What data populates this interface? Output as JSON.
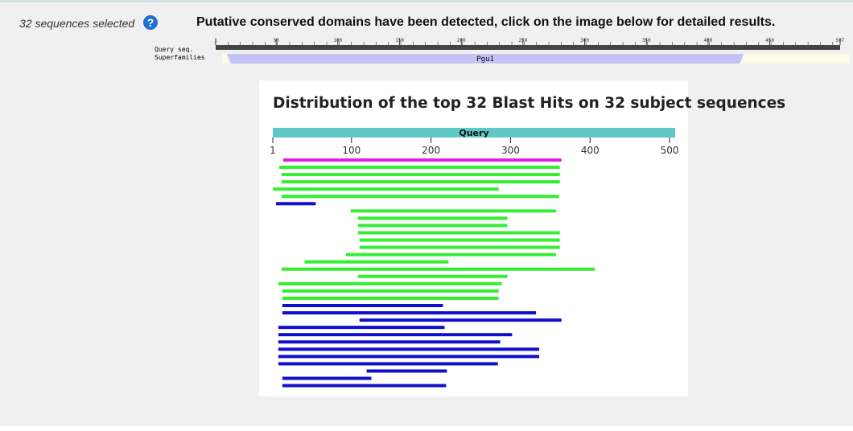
{
  "selection": {
    "count_text": "32 sequences selected"
  },
  "help": {
    "glyph": "?"
  },
  "cdd": {
    "title": "Putative conserved domains have been detected, click on the image below for detailed results.",
    "query_label": "Query seq.",
    "superfamilies_label": "Superfamilies",
    "query_length": 507,
    "scale_ticks": [
      1,
      50,
      100,
      150,
      200,
      250,
      300,
      350,
      400,
      450,
      507
    ],
    "domains": [
      {
        "name": "Pgu1",
        "start": 10,
        "end": 429
      }
    ],
    "colors": {
      "query_bar": "#444444",
      "domain": "#c4c4f4"
    }
  },
  "blast": {
    "title": "Distribution of the top 32 Blast Hits on 32 subject sequences",
    "query_label": "Query",
    "query_color": "#5ec8c4",
    "ticks": [
      1,
      100,
      200,
      300,
      400,
      500
    ],
    "max_length": 507,
    "colors": {
      "magenta": "#e020e0",
      "green": "#33ee33",
      "blue": "#1010cc"
    },
    "hits": [
      {
        "start": 14,
        "end": 364,
        "color": "magenta"
      },
      {
        "start": 9,
        "end": 362,
        "color": "green"
      },
      {
        "start": 12,
        "end": 362,
        "color": "green"
      },
      {
        "start": 12,
        "end": 362,
        "color": "green"
      },
      {
        "start": 1,
        "end": 285,
        "color": "green"
      },
      {
        "start": 12,
        "end": 361,
        "color": "green"
      },
      {
        "start": 5,
        "end": 55,
        "color": "blue"
      },
      {
        "start": 99,
        "end": 357,
        "color": "green"
      },
      {
        "start": 108,
        "end": 296,
        "color": "green"
      },
      {
        "start": 108,
        "end": 296,
        "color": "green"
      },
      {
        "start": 108,
        "end": 362,
        "color": "green"
      },
      {
        "start": 110,
        "end": 362,
        "color": "green"
      },
      {
        "start": 110,
        "end": 362,
        "color": "green"
      },
      {
        "start": 93,
        "end": 357,
        "color": "green"
      },
      {
        "start": 41,
        "end": 222,
        "color": "green"
      },
      {
        "start": 12,
        "end": 406,
        "color": "green"
      },
      {
        "start": 108,
        "end": 296,
        "color": "green"
      },
      {
        "start": 8,
        "end": 289,
        "color": "green"
      },
      {
        "start": 13,
        "end": 285,
        "color": "green"
      },
      {
        "start": 13,
        "end": 285,
        "color": "green"
      },
      {
        "start": 13,
        "end": 215,
        "color": "blue"
      },
      {
        "start": 13,
        "end": 332,
        "color": "blue"
      },
      {
        "start": 110,
        "end": 364,
        "color": "blue"
      },
      {
        "start": 8,
        "end": 217,
        "color": "blue"
      },
      {
        "start": 8,
        "end": 302,
        "color": "blue"
      },
      {
        "start": 8,
        "end": 287,
        "color": "blue"
      },
      {
        "start": 8,
        "end": 336,
        "color": "blue"
      },
      {
        "start": 8,
        "end": 336,
        "color": "blue"
      },
      {
        "start": 8,
        "end": 284,
        "color": "blue"
      },
      {
        "start": 119,
        "end": 220,
        "color": "blue"
      },
      {
        "start": 13,
        "end": 125,
        "color": "blue"
      },
      {
        "start": 13,
        "end": 219,
        "color": "blue"
      }
    ]
  }
}
